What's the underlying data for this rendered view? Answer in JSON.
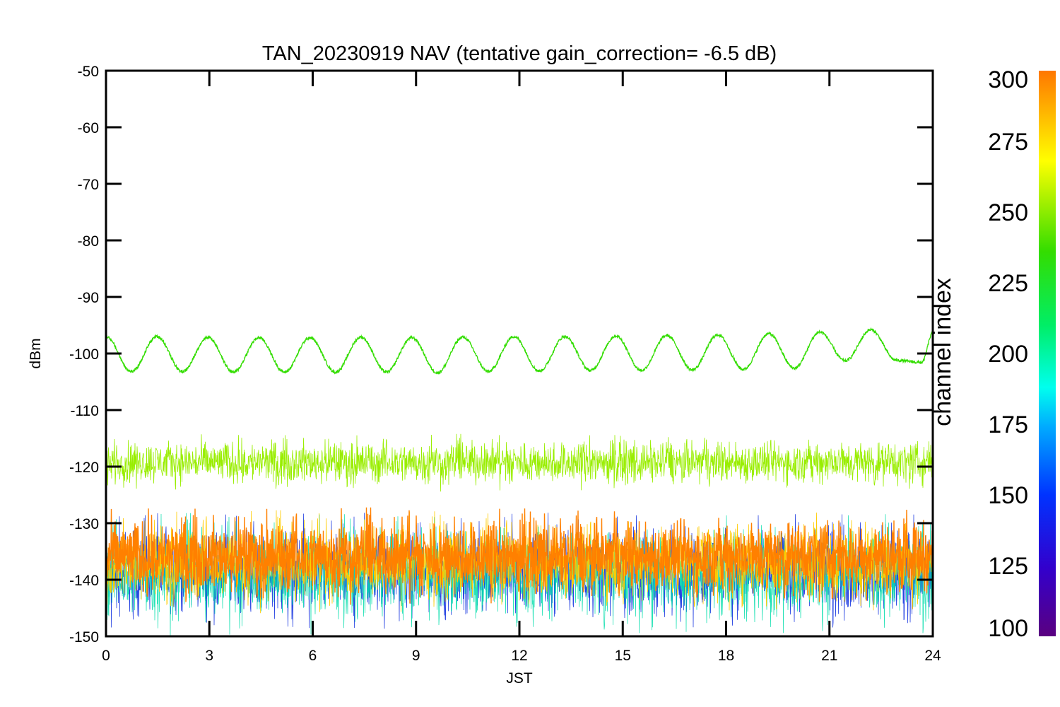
{
  "chart_data": {
    "type": "line",
    "title": "TAN_20230919 NAV (tentative gain_correction= -6.5 dB)",
    "xlabel": "JST",
    "ylabel": "dBm",
    "xlim": [
      0,
      24
    ],
    "ylim": [
      -150,
      -50
    ],
    "xticks": [
      "0",
      "3",
      "6",
      "9",
      "12",
      "15",
      "18",
      "21",
      "24"
    ],
    "yticks": [
      "-50",
      "-60",
      "-70",
      "-80",
      "-90",
      "-100",
      "-110",
      "-120",
      "-130",
      "-140",
      "-150"
    ],
    "grid": false,
    "colorbar": {
      "label": "channel index",
      "range": [
        100,
        300
      ],
      "ticks": [
        "300",
        "275",
        "250",
        "225",
        "200",
        "175",
        "150",
        "125",
        "100"
      ]
    },
    "series": [
      {
        "channel": 240,
        "color": "#33dd00",
        "description_type": "sinusoid",
        "mean": -100.0,
        "amplitude": 3.2,
        "period_hours": 1.48,
        "x": [
          0,
          0.74,
          1.48,
          2.22,
          2.96,
          3.7,
          4.44,
          5.18,
          5.92,
          6.66,
          7.4,
          8.14,
          8.88,
          9.62,
          10.36,
          11.1,
          11.84,
          12.58,
          13.32,
          14.06,
          14.8,
          15.54,
          16.28,
          17.02,
          17.76,
          18.5,
          19.24,
          19.98,
          20.72,
          21.46,
          22.2,
          22.94,
          23.68,
          24
        ],
        "y": [
          -97.0,
          -103.2,
          -97.0,
          -103.2,
          -97.1,
          -103.3,
          -97.2,
          -103.3,
          -97.2,
          -103.3,
          -97.1,
          -103.3,
          -97.2,
          -103.4,
          -97.1,
          -103.2,
          -97.0,
          -103.1,
          -97.0,
          -103.0,
          -96.9,
          -103.0,
          -96.8,
          -102.9,
          -96.7,
          -102.8,
          -96.5,
          -102.6,
          -96.2,
          -101.3,
          -95.8,
          -101.2,
          -101.6,
          -96.4
        ]
      },
      {
        "channel": 265,
        "color": "#99ee00",
        "description_type": "noise-band",
        "mean": -119.5,
        "min": -124.5,
        "max": -114.0
      },
      {
        "channel": 295,
        "color": "#ff8000",
        "description_type": "noise-band",
        "mean": -136.5,
        "min": -144.5,
        "max": -127.0
      },
      {
        "channel": 280,
        "color": "#ffcc00",
        "description_type": "noise-band",
        "mean": -137.0,
        "min": -146.0,
        "max": -127.5
      },
      {
        "channel": 150,
        "color": "#0022dd",
        "description_type": "noise-band",
        "mean": -138.0,
        "min": -149.0,
        "max": -128.0
      },
      {
        "channel": 190,
        "color": "#00ddaa",
        "description_type": "noise-band",
        "mean": -138.0,
        "min": -150.0,
        "max": -128.0
      }
    ]
  }
}
